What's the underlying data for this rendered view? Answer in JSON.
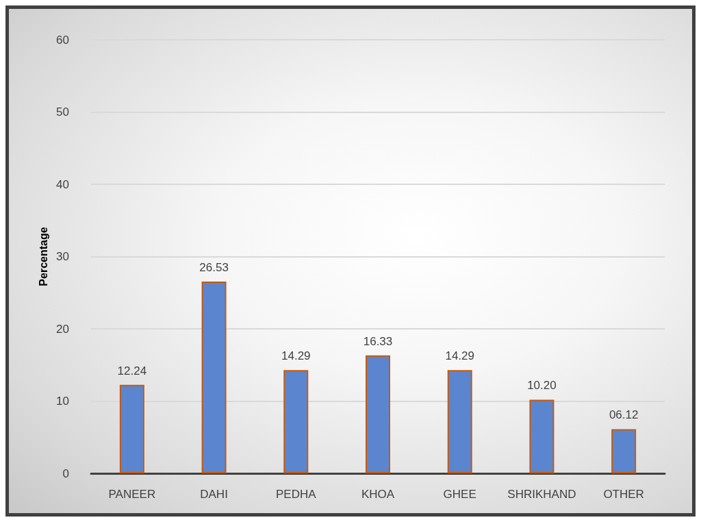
{
  "chart_data": {
    "type": "bar",
    "ylabel": "Percentage",
    "categories": [
      "PANEER",
      "DAHI",
      "PEDHA",
      "KHOA",
      "GHEE",
      "SHRIKHAND",
      "OTHER"
    ],
    "values": [
      12.24,
      26.53,
      14.29,
      16.33,
      14.29,
      10.2,
      6.12
    ],
    "value_labels": [
      "12.24",
      "26.53",
      "14.29",
      "16.33",
      "14.29",
      "10.20",
      "06.12"
    ],
    "color": "#5b86cf",
    "ylim": [
      0,
      60
    ],
    "yticks": [
      0,
      10,
      20,
      30,
      40,
      50,
      60
    ],
    "grid": true
  }
}
